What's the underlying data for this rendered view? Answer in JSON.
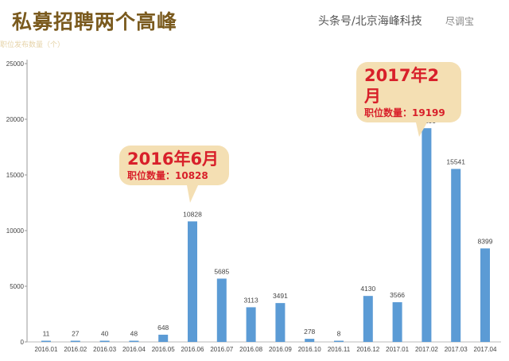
{
  "chart_data": {
    "type": "bar",
    "title": "私募招聘两个高峰",
    "ylabel": "职位发布数量（个）",
    "xlabel": "",
    "categories": [
      "2016.01",
      "2016.02",
      "2016.03",
      "2016.04",
      "2016.05",
      "2016.06",
      "2016.07",
      "2016.08",
      "2016.09",
      "2016.10",
      "2016.11",
      "2016.12",
      "2017.01",
      "2017.02",
      "2017.03",
      "2017.04"
    ],
    "values": [
      11,
      27,
      40,
      48,
      648,
      10828,
      5685,
      3113,
      3491,
      278,
      8,
      4130,
      3566,
      19199,
      15541,
      8399
    ],
    "ylim": [
      0,
      25000
    ],
    "yticks": [
      0,
      5000,
      10000,
      15000,
      20000,
      25000
    ],
    "grid": false,
    "bar_color": "#5b9bd5",
    "annotations": [
      {
        "title": "2016年6月",
        "text": "职位数量：10828",
        "target": "2016.06"
      },
      {
        "title": "2017年2月",
        "text": "职位数量：19199",
        "target": "2017.02"
      }
    ]
  },
  "watermark": {
    "text": "头条号/北京海峰科技",
    "logo": "尽调宝"
  }
}
